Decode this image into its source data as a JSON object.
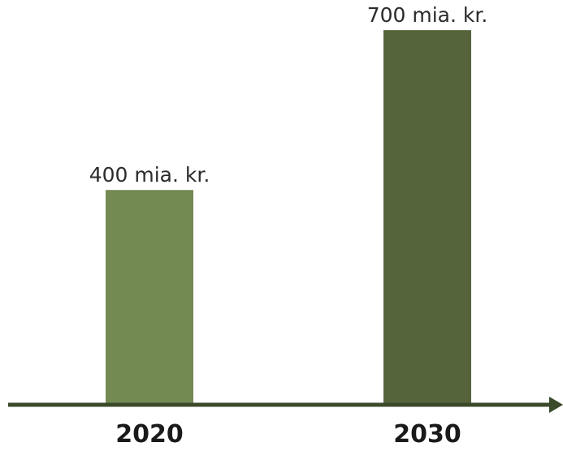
{
  "chart_data": {
    "type": "bar",
    "categories": [
      "2020",
      "2030"
    ],
    "values": [
      400,
      700
    ],
    "value_labels": [
      "400 mia. kr.",
      "700 mia. kr."
    ],
    "colors": [
      "#738a53",
      "#55643a"
    ],
    "axis_color": "#3b4a2a",
    "ylim": [
      0,
      720
    ],
    "grid": false,
    "title": "",
    "xlabel": "",
    "ylabel": ""
  }
}
